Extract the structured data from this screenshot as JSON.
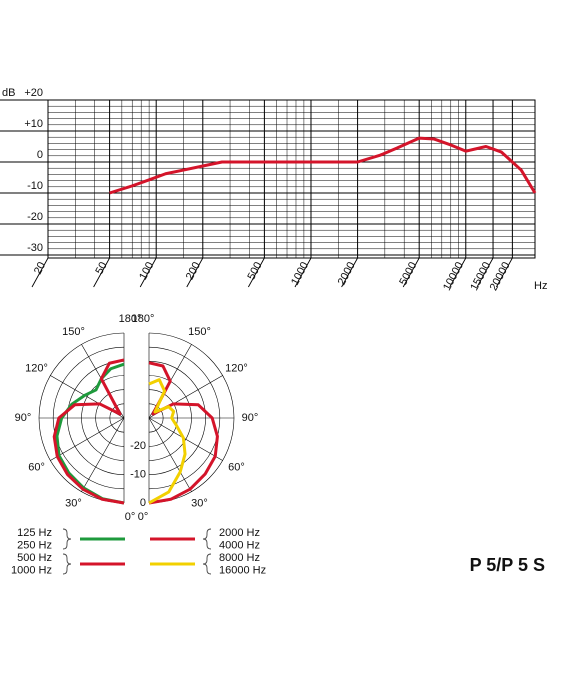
{
  "chart_data": [
    {
      "type": "line",
      "ylabel": "dB",
      "xlabel": "Hz",
      "log_x": true,
      "x": [
        50,
        70,
        93,
        115,
        150,
        213,
        266,
        2000,
        2800,
        3600,
        5000,
        6250,
        8000,
        10000,
        13500,
        17000,
        22800,
        28000
      ],
      "series": [
        {
          "color": "#d4142a",
          "values": [
            -10,
            -7.7,
            -5.5,
            -3.8,
            -2.6,
            -1,
            0,
            0,
            2.2,
            4.5,
            7.7,
            7.4,
            5.5,
            3.5,
            5,
            3.2,
            -2.6,
            -10
          ]
        }
      ],
      "xlim": [
        20,
        28000
      ],
      "xticks": [
        20,
        50,
        100,
        200,
        500,
        1000,
        2000,
        5000,
        10000,
        15000,
        20000
      ],
      "xgrid": [
        30,
        40,
        60,
        70,
        80,
        90,
        150,
        300,
        400,
        600,
        700,
        800,
        900,
        1500,
        3000,
        4000,
        6000,
        7000,
        8000,
        9000
      ],
      "ylim": [
        -30,
        20
      ],
      "yticks": [
        {
          "value": 20,
          "label": "+20"
        },
        {
          "value": 10,
          "label": "+10"
        },
        0,
        -10,
        -20,
        -30
      ],
      "ygrid": [
        -28,
        -26,
        -24,
        -22,
        -18,
        -16,
        -14,
        -12,
        -8,
        -6,
        -4,
        -2,
        2,
        4,
        6,
        8,
        12,
        14,
        16,
        18
      ]
    },
    {
      "type": "polar",
      "angles": [
        0,
        15,
        30,
        45,
        60,
        75,
        90,
        105,
        120,
        135,
        150,
        165,
        180
      ],
      "angle_ticks": [
        {
          "value": 0,
          "label": "0°"
        },
        {
          "value": 30,
          "label": "30°"
        },
        {
          "value": 60,
          "label": "60°"
        },
        {
          "value": 90,
          "label": "90°"
        },
        {
          "value": 120,
          "label": "120°"
        },
        {
          "value": 150,
          "label": "150°"
        },
        {
          "value": 180,
          "label": "180°"
        }
      ],
      "rlim": [
        -30,
        0
      ],
      "rticks": [
        0,
        -10,
        -20
      ],
      "rgrid": [
        -5,
        -15,
        -25
      ],
      "series": [
        {
          "labels": [
            "125 Hz",
            "250 Hz"
          ],
          "color": "#1e9a3c",
          "side": "left",
          "values": [
            0,
            -0.5,
            -1.5,
            -2.5,
            -3.5,
            -5.5,
            -8,
            -11,
            -14,
            -16,
            -14,
            -12,
            -11
          ]
        },
        {
          "labels": [
            "500 Hz",
            "1000 Hz"
          ],
          "color": "#d4142a",
          "side": "left",
          "values": [
            0,
            -0.3,
            -1,
            -1.8,
            -2.8,
            -4.5,
            -7,
            -12,
            -20,
            -28,
            -14,
            -10,
            -9.5
          ]
        },
        {
          "labels": [
            "2000 Hz",
            "4000 Hz"
          ],
          "color": "#d4142a",
          "side": "right",
          "values": [
            0,
            -0.3,
            -1,
            -2,
            -3,
            -5,
            -7.7,
            -12,
            -20,
            -28,
            -15,
            -11,
            -10.5
          ]
        },
        {
          "labels": [
            "8000 Hz",
            "16000 Hz"
          ],
          "color": "#f2d000",
          "side": "right",
          "values": [
            0,
            -3,
            -8,
            -12,
            -16,
            -20,
            -22,
            -21,
            -22,
            -27,
            -19,
            -16,
            -18
          ]
        }
      ]
    }
  ],
  "model": "P 5/P 5 S"
}
